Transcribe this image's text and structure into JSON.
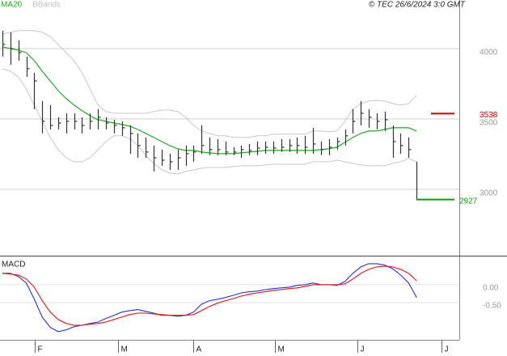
{
  "chart_data": [
    {
      "type": "ohlc",
      "title": "© TEC 26/6/2024 3:0 GMT",
      "high": [
        4127,
        4115,
        4058,
        3943,
        3828,
        3627,
        3598,
        3512,
        3540,
        3540,
        3512,
        3540,
        3569,
        3512,
        3494,
        3483,
        3454,
        3397,
        3368,
        3311,
        3282,
        3253,
        3282,
        3311,
        3311,
        3454,
        3368,
        3357,
        3339,
        3299,
        3311,
        3322,
        3339,
        3339,
        3339,
        3357,
        3357,
        3368,
        3380,
        3437,
        3339,
        3357,
        3368,
        3425,
        3569,
        3627,
        3569,
        3540,
        3552,
        3454,
        3397,
        3368,
        3196
      ],
      "low": [
        3943,
        3885,
        3914,
        3799,
        3569,
        3397,
        3425,
        3425,
        3397,
        3425,
        3397,
        3425,
        3425,
        3425,
        3397,
        3380,
        3253,
        3224,
        3224,
        3127,
        3167,
        3138,
        3138,
        3167,
        3196,
        3253,
        3242,
        3242,
        3242,
        3242,
        3224,
        3242,
        3242,
        3253,
        3253,
        3265,
        3265,
        3253,
        3253,
        3253,
        3242,
        3242,
        3282,
        3311,
        3397,
        3454,
        3437,
        3425,
        3414,
        3224,
        3253,
        3224,
        2927
      ],
      "close": [
        4029,
        4000,
        3971,
        3857,
        3770,
        3483,
        3454,
        3471,
        3483,
        3483,
        3454,
        3483,
        3512,
        3471,
        3454,
        3437,
        3397,
        3311,
        3265,
        3224,
        3207,
        3196,
        3224,
        3253,
        3265,
        3311,
        3282,
        3282,
        3265,
        3265,
        3282,
        3276,
        3293,
        3299,
        3293,
        3299,
        3311,
        3311,
        3299,
        3322,
        3282,
        3299,
        3339,
        3380,
        3483,
        3540,
        3512,
        3483,
        3494,
        3339,
        3311,
        3282,
        2927
      ],
      "color": "#333333",
      "series": [
        {
          "name": "MA20",
          "color": "#22aa22",
          "values": [
            4012,
            4000,
            3989,
            3971,
            3914,
            3839,
            3770,
            3701,
            3644,
            3598,
            3558,
            3523,
            3494,
            3483,
            3471,
            3460,
            3448,
            3425,
            3397,
            3368,
            3339,
            3311,
            3288,
            3276,
            3276,
            3265,
            3259,
            3253,
            3253,
            3253,
            3259,
            3265,
            3270,
            3276,
            3276,
            3276,
            3276,
            3276,
            3276,
            3276,
            3282,
            3288,
            3299,
            3334,
            3368,
            3397,
            3414,
            3414,
            3425,
            3437,
            3437,
            3437,
            3414
          ]
        },
        {
          "name": "BBands",
          "color": "#c8c8c8",
          "upper": [
            4104,
            4115,
            4127,
            4127,
            4127,
            4115,
            4086,
            4029,
            3971,
            3914,
            3828,
            3713,
            3598,
            3552,
            3540,
            3540,
            3540,
            3540,
            3540,
            3552,
            3563,
            3563,
            3552,
            3512,
            3454,
            3414,
            3397,
            3380,
            3380,
            3368,
            3368,
            3368,
            3380,
            3380,
            3391,
            3391,
            3391,
            3391,
            3391,
            3414,
            3414,
            3408,
            3414,
            3483,
            3569,
            3609,
            3627,
            3632,
            3627,
            3609,
            3598,
            3609,
            3667
          ],
          "lower": [
            3857,
            3839,
            3799,
            3713,
            3598,
            3483,
            3368,
            3282,
            3224,
            3196,
            3196,
            3224,
            3282,
            3339,
            3380,
            3380,
            3357,
            3311,
            3242,
            3184,
            3138,
            3115,
            3109,
            3127,
            3138,
            3150,
            3155,
            3155,
            3155,
            3161,
            3167,
            3167,
            3167,
            3173,
            3178,
            3178,
            3178,
            3178,
            3178,
            3196,
            3196,
            3196,
            3207,
            3196,
            3184,
            3173,
            3167,
            3167,
            3167,
            3184,
            3196,
            3219,
            3196
          ]
        }
      ],
      "levels": [
        {
          "value": 3538,
          "color": "#cc0000"
        },
        {
          "value": 2927,
          "color": "#119911"
        }
      ],
      "ylim": [
        2534,
        4345
      ],
      "yticks": [
        3000,
        3500,
        4000
      ],
      "grid": true
    },
    {
      "type": "line",
      "title": "MACD",
      "series": [
        {
          "color": "#2233dd",
          "values": [
            0.32,
            0.32,
            0.23,
            0.05,
            -0.41,
            -0.91,
            -1.2,
            -1.32,
            -1.27,
            -1.18,
            -1.14,
            -1.09,
            -1.05,
            -0.95,
            -0.86,
            -0.77,
            -0.73,
            -0.7,
            -0.75,
            -0.8,
            -0.86,
            -0.86,
            -0.89,
            -0.86,
            -0.77,
            -0.55,
            -0.45,
            -0.41,
            -0.36,
            -0.3,
            -0.23,
            -0.2,
            -0.18,
            -0.14,
            -0.11,
            -0.09,
            -0.07,
            -0.02,
            0,
            0.05,
            0,
            0,
            -0.02,
            0.09,
            0.32,
            0.5,
            0.59,
            0.59,
            0.55,
            0.45,
            0.27,
            0.05,
            -0.36
          ]
        },
        {
          "color": "#dd1111",
          "values": [
            0.32,
            0.3,
            0.27,
            0.16,
            -0.07,
            -0.45,
            -0.77,
            -0.98,
            -1.09,
            -1.14,
            -1.14,
            -1.11,
            -1.09,
            -1.05,
            -0.98,
            -0.91,
            -0.84,
            -0.8,
            -0.8,
            -0.82,
            -0.84,
            -0.86,
            -0.86,
            -0.86,
            -0.84,
            -0.73,
            -0.61,
            -0.52,
            -0.45,
            -0.39,
            -0.32,
            -0.27,
            -0.23,
            -0.2,
            -0.16,
            -0.14,
            -0.11,
            -0.09,
            -0.05,
            0,
            0,
            0,
            0,
            0.02,
            0.16,
            0.32,
            0.43,
            0.5,
            0.52,
            0.5,
            0.43,
            0.32,
            0.11
          ]
        }
      ],
      "ylim": [
        -1.55,
        0.77
      ],
      "yticks": [
        {
          "value": 0,
          "label": "0.00"
        },
        {
          "value": -0.5,
          "label": "-0.50"
        }
      ],
      "grid": true,
      "xlim": [
        -0.3,
        57.36
      ],
      "xticks": [
        {
          "value": 4.06,
          "label": "F"
        },
        {
          "value": 14.5,
          "label": "M"
        },
        {
          "value": 24,
          "label": "A"
        },
        {
          "value": 34.2,
          "label": "M"
        },
        {
          "value": 44.6,
          "label": "J"
        },
        {
          "value": 55.1,
          "label": "J"
        }
      ]
    }
  ]
}
